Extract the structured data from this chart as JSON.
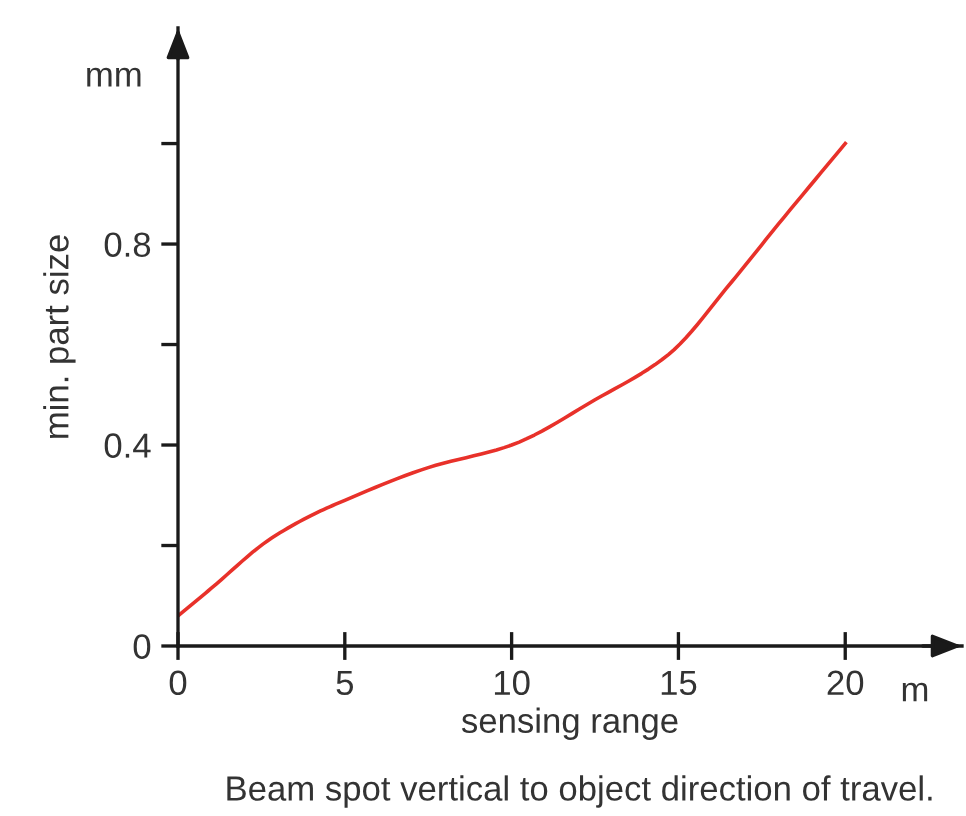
{
  "chart_data": {
    "type": "line",
    "xlabel": "sensing range",
    "ylabel": "min. part size",
    "annotations": [
      "mm",
      "m",
      "Beam spot vertical to object direction of travel."
    ],
    "x": [
      0,
      1,
      2.7,
      4,
      5,
      7.5,
      10,
      12.5,
      14.7,
      16.6,
      18,
      20
    ],
    "series": [
      {
        "color": "#e8312a",
        "values": [
          0.06,
          0.115,
          0.21,
          0.26,
          0.29,
          0.355,
          0.4,
          0.49,
          0.58,
          0.725,
          0.84,
          1.0
        ]
      }
    ],
    "xlim": [
      0,
      23.5
    ],
    "ylim": [
      0,
      1.23
    ],
    "xticks": [
      0,
      5,
      10,
      15,
      20
    ],
    "yticks": [
      0,
      {
        "value": 0.2,
        "label": null
      },
      0.4,
      {
        "value": 0.6,
        "label": null
      },
      0.8,
      {
        "value": 1.0,
        "label": null
      }
    ],
    "grid": false,
    "legend": false,
    "marker": "none",
    "line_style": "solid"
  }
}
